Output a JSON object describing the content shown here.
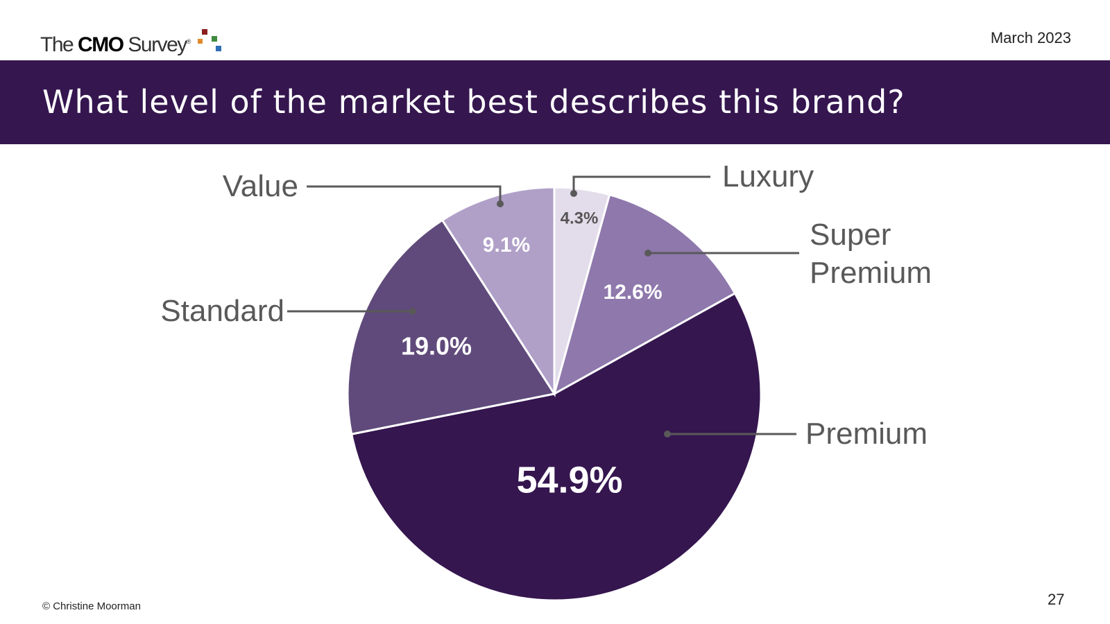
{
  "header": {
    "logo": {
      "prefix": "The",
      "bold": "CMO",
      "suffix": "Survey",
      "mark": "®"
    },
    "date": "March 2023"
  },
  "chart_data": {
    "type": "pie",
    "title": "What level of the market best describes this brand?",
    "categories": [
      "Luxury",
      "Super Premium",
      "Premium",
      "Standard",
      "Value"
    ],
    "values": [
      4.3,
      12.6,
      54.9,
      19.0,
      9.1
    ],
    "value_labels": [
      "4.3%",
      "12.6%",
      "54.9%",
      "19.0%",
      "9.1%"
    ],
    "colors": [
      "#e3dcea",
      "#8e78ac",
      "#35164f",
      "#604a7b",
      "#b0a0c8"
    ]
  },
  "footer": {
    "copyright": "© Christine Moorman",
    "page": "27"
  }
}
